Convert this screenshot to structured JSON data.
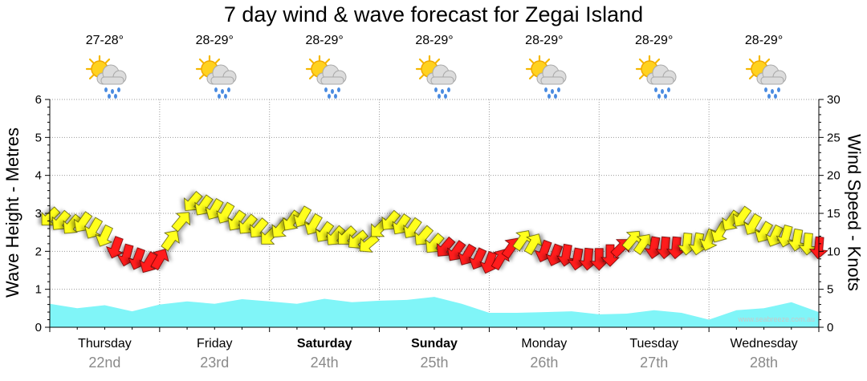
{
  "chart_data": {
    "type": "line",
    "title": "7 day wind & wave forecast for Zegai Island",
    "ylabel": "Wave Height - Metres",
    "y2label": "Wind Speed - Knots",
    "ylim": [
      0,
      6
    ],
    "y2lim": [
      0,
      30
    ],
    "yticks": [
      "0",
      "1",
      "2",
      "3",
      "4",
      "5",
      "6"
    ],
    "y2ticks": [
      "0",
      "5",
      "10",
      "15",
      "20",
      "25",
      "30"
    ],
    "days": [
      {
        "day": "Thursday",
        "date": "22nd",
        "temp": "27-28°",
        "bold": false
      },
      {
        "day": "Friday",
        "date": "23rd",
        "temp": "28-29°",
        "bold": false
      },
      {
        "day": "Saturday",
        "date": "24th",
        "temp": "28-29°",
        "bold": true
      },
      {
        "day": "Sunday",
        "date": "25th",
        "temp": "28-29°",
        "bold": true
      },
      {
        "day": "Monday",
        "date": "26th",
        "temp": "28-29°",
        "bold": false
      },
      {
        "day": "Tuesday",
        "date": "27th",
        "temp": "28-29°",
        "bold": false
      },
      {
        "day": "Wednesday",
        "date": "28th",
        "temp": "28-29°",
        "bold": false
      }
    ],
    "series": [
      {
        "name": "Wave Height (m)",
        "color": "#80f5f8",
        "x": [
          0,
          0.25,
          0.5,
          0.75,
          1,
          1.25,
          1.5,
          1.75,
          2,
          2.25,
          2.5,
          2.75,
          3,
          3.25,
          3.5,
          3.75,
          4,
          4.25,
          4.5,
          4.75,
          5,
          5.25,
          5.5,
          5.75,
          6,
          6.25,
          6.5,
          6.75,
          7
        ],
        "values": [
          0.62,
          0.5,
          0.58,
          0.42,
          0.6,
          0.68,
          0.62,
          0.74,
          0.68,
          0.62,
          0.75,
          0.66,
          0.7,
          0.72,
          0.8,
          0.62,
          0.38,
          0.38,
          0.4,
          0.42,
          0.34,
          0.36,
          0.45,
          0.38,
          0.2,
          0.45,
          0.5,
          0.66,
          0.4
        ]
      },
      {
        "name": "Wind Speed (knots)",
        "color_light": "#ffff1a",
        "color_strong": "#ff1a1a",
        "strong_threshold_knots": 11,
        "x": [
          0,
          0.1,
          0.2,
          0.3,
          0.4,
          0.5,
          0.6,
          0.7,
          0.8,
          0.9,
          1,
          1.1,
          1.2,
          1.3,
          1.4,
          1.5,
          1.6,
          1.7,
          1.8,
          1.9,
          2,
          2.1,
          2.2,
          2.3,
          2.4,
          2.5,
          2.6,
          2.7,
          2.8,
          2.9,
          3,
          3.1,
          3.2,
          3.3,
          3.4,
          3.5,
          3.6,
          3.7,
          3.8,
          3.9,
          4,
          4.1,
          4.2,
          4.3,
          4.4,
          4.5,
          4.6,
          4.7,
          4.8,
          4.9,
          5,
          5.1,
          5.2,
          5.3,
          5.4,
          5.5,
          5.6,
          5.7,
          5.8,
          5.9,
          6,
          6.1,
          6.2,
          6.3,
          6.4,
          6.5,
          6.6,
          6.7,
          6.8,
          6.9,
          7
        ],
        "values": [
          14.5,
          14.0,
          13.5,
          13.8,
          13.0,
          12.0,
          10.5,
          9.5,
          9.0,
          8.5,
          9.0,
          11.5,
          14.0,
          16.5,
          16.0,
          15.5,
          15.0,
          14.0,
          13.5,
          13.0,
          12.0,
          13.0,
          14.0,
          14.5,
          13.5,
          12.5,
          12.0,
          12.0,
          11.5,
          11.0,
          13.0,
          14.0,
          13.5,
          13.0,
          12.0,
          11.0,
          10.5,
          10.0,
          9.5,
          9.0,
          8.5,
          9.0,
          10.5,
          11.5,
          11.0,
          10.0,
          9.5,
          9.5,
          9.0,
          9.0,
          9.0,
          9.5,
          10.5,
          11.5,
          11.0,
          10.5,
          10.5,
          10.5,
          11.0,
          11.0,
          11.5,
          12.5,
          14.0,
          14.5,
          13.5,
          12.5,
          12.0,
          12.0,
          11.5,
          11.0,
          10.5
        ],
        "directions_deg": [
          135,
          130,
          130,
          125,
          120,
          115,
          110,
          105,
          110,
          120,
          -60,
          -55,
          -50,
          130,
          125,
          120,
          120,
          125,
          130,
          130,
          135,
          130,
          125,
          120,
          120,
          125,
          130,
          135,
          140,
          140,
          135,
          130,
          125,
          125,
          130,
          130,
          130,
          125,
          120,
          115,
          110,
          -60,
          -55,
          -55,
          -60,
          110,
          110,
          100,
          100,
          95,
          90,
          90,
          -45,
          -50,
          -55,
          100,
          95,
          95,
          95,
          100,
          110,
          120,
          125,
          125,
          120,
          120,
          115,
          105,
          100,
          95,
          95
        ]
      }
    ],
    "credit": "www.seabreeze.com.au"
  }
}
